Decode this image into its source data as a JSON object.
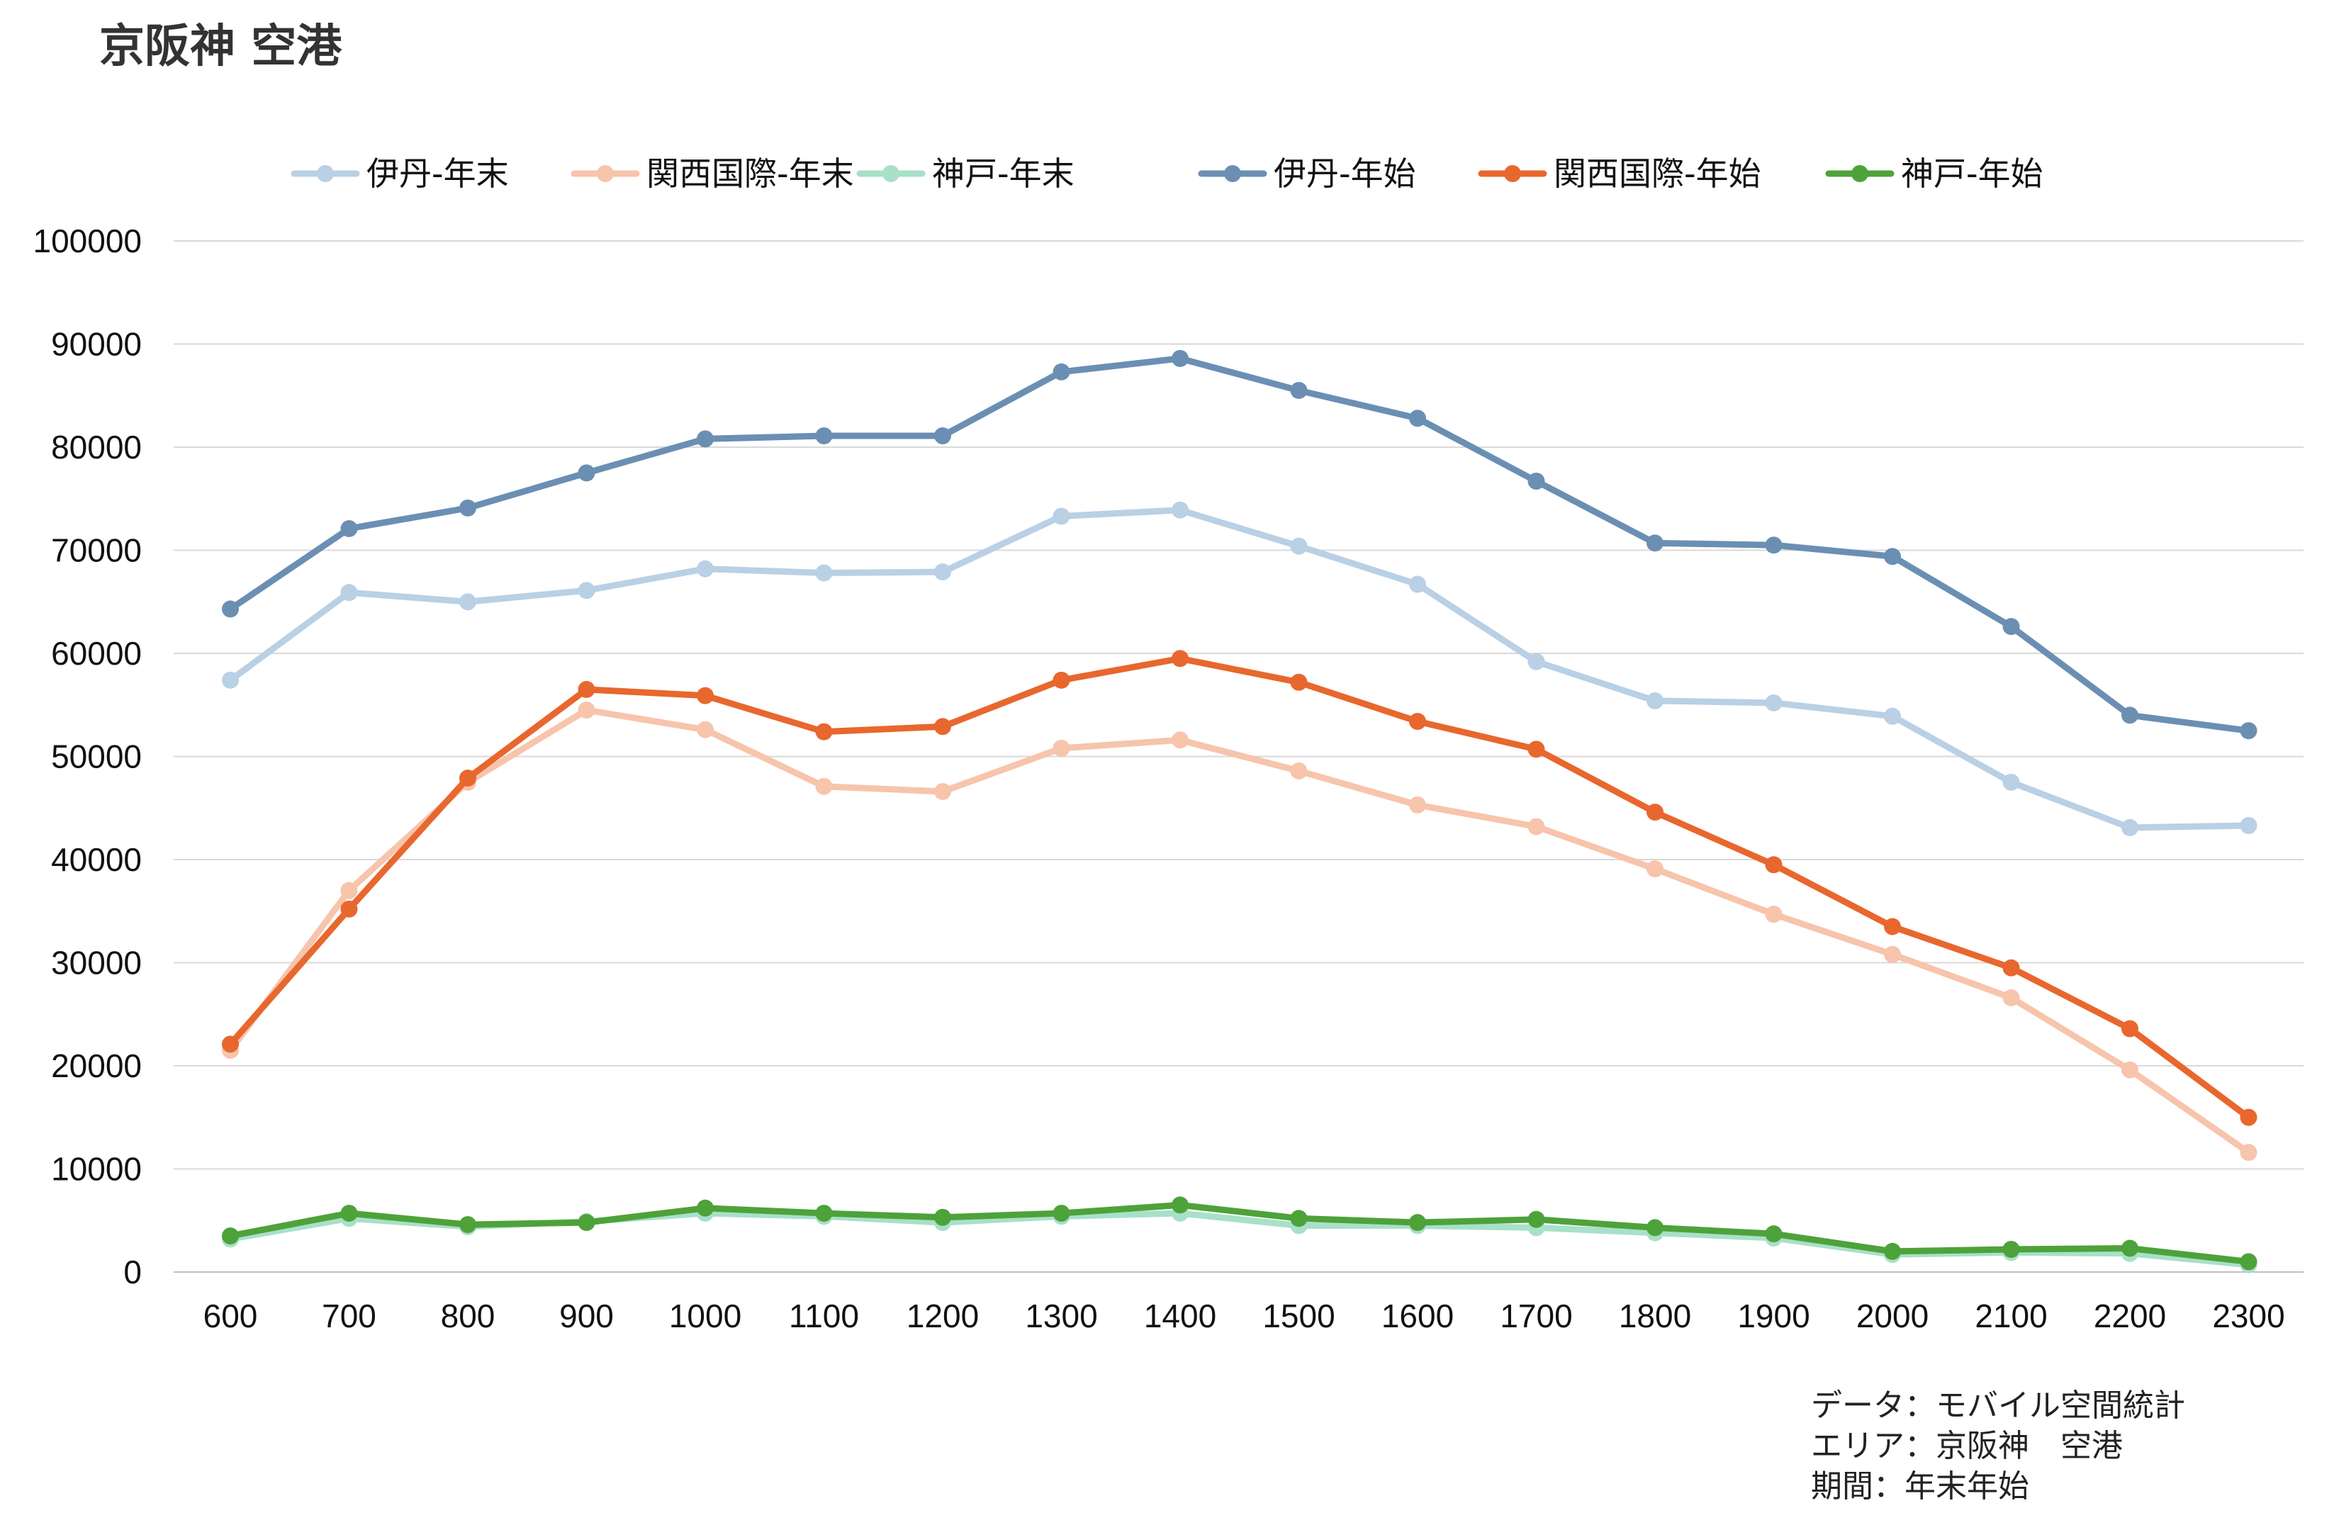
{
  "chart_data": {
    "type": "line",
    "title": "京阪神 空港",
    "xlabel": "",
    "ylabel": "",
    "ylim": [
      0,
      100000
    ],
    "y_ticks": [
      "0",
      "10000",
      "20000",
      "30000",
      "40000",
      "50000",
      "60000",
      "70000",
      "80000",
      "90000",
      "100000"
    ],
    "grid": "horizontal",
    "legend": "top",
    "categories": [
      "600",
      "700",
      "800",
      "900",
      "1000",
      "1100",
      "1200",
      "1300",
      "1400",
      "1500",
      "1600",
      "1700",
      "1800",
      "1900",
      "2000",
      "2100",
      "2200",
      "2300"
    ],
    "series": [
      {
        "name": "伊丹-年末",
        "color": "#b9d0e5",
        "values": [
          57400,
          65900,
          65000,
          66100,
          68200,
          67800,
          67900,
          73300,
          73900,
          70400,
          66700,
          59200,
          55400,
          55200,
          53900,
          47500,
          43100,
          43300
        ]
      },
      {
        "name": "関西国際-年末",
        "color": "#f7c4ac",
        "values": [
          21500,
          37000,
          47500,
          54500,
          52600,
          47100,
          46600,
          50800,
          51600,
          48600,
          45300,
          43200,
          39100,
          34700,
          30800,
          26600,
          19600,
          11600
        ]
      },
      {
        "name": "神戸-年末",
        "color": "#a8e0c8",
        "values": [
          3200,
          5200,
          4400,
          4900,
          5700,
          5400,
          4800,
          5400,
          5700,
          4500,
          4500,
          4300,
          3800,
          3300,
          1700,
          1900,
          1800,
          700
        ]
      },
      {
        "name": "伊丹-年始",
        "color": "#6b8fb3",
        "values": [
          64300,
          72100,
          74100,
          77500,
          80800,
          81100,
          81100,
          87300,
          88600,
          85500,
          82800,
          76700,
          70700,
          70500,
          69400,
          62600,
          54000,
          52500
        ]
      },
      {
        "name": "関西国際-年始",
        "color": "#e8672e",
        "values": [
          22100,
          35200,
          47900,
          56500,
          55900,
          52400,
          52900,
          57400,
          59500,
          57200,
          53400,
          50700,
          44600,
          39500,
          33500,
          29500,
          23600,
          15000
        ]
      },
      {
        "name": "神戸-年始",
        "color": "#4ea23a",
        "values": [
          3500,
          5700,
          4600,
          4800,
          6200,
          5700,
          5300,
          5700,
          6500,
          5200,
          4800,
          5100,
          4300,
          3700,
          2000,
          2200,
          2300,
          1000
        ]
      }
    ]
  },
  "source_note": {
    "line1": "データ：モバイル空間統計",
    "line2": "エリア：京阪神　空港",
    "line3": "期間：年末年始"
  }
}
